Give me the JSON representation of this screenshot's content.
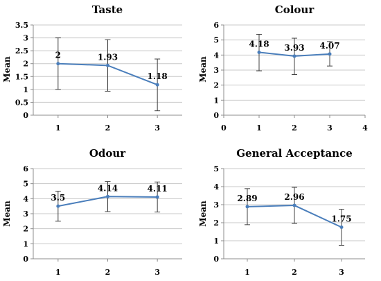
{
  "colors": {
    "series": "#4a7ebb",
    "errorbar": "#404040",
    "grid": "#c8c8c8"
  },
  "chart_data": [
    {
      "type": "line",
      "title": "Taste",
      "ylabel": "Mean",
      "xlabel": "",
      "x": [
        1,
        2,
        3
      ],
      "values": [
        2,
        1.93,
        1.18
      ],
      "data_labels": [
        "2",
        "1.93",
        "1.18"
      ],
      "error_low": [
        1,
        0.93,
        0.17
      ],
      "error_high": [
        3,
        2.93,
        2.18
      ],
      "ylim": [
        0,
        3.5
      ],
      "yticks": [
        0,
        0.5,
        1,
        1.5,
        2,
        2.5,
        3,
        3.5
      ],
      "yticklabels": [
        "0",
        "0.5",
        "1",
        "1.5",
        "2",
        "2.5",
        "3",
        "3.5"
      ],
      "xlim": [
        0.5,
        3.5
      ],
      "xticks": [
        1,
        2,
        3
      ],
      "xticklabels": [
        "1",
        "2",
        "3"
      ],
      "grid": true
    },
    {
      "type": "line",
      "title": "Colour",
      "ylabel": "Mean",
      "xlabel": "",
      "x": [
        1,
        2,
        3
      ],
      "values": [
        4.18,
        3.93,
        4.07
      ],
      "data_labels": [
        "4.18",
        "3.93",
        "4.07"
      ],
      "error_low": [
        2.95,
        2.7,
        3.27
      ],
      "error_high": [
        5.38,
        5.12,
        4.9
      ],
      "ylim": [
        0,
        6
      ],
      "yticks": [
        0,
        1,
        2,
        3,
        4,
        5,
        6
      ],
      "yticklabels": [
        "0",
        "1",
        "2",
        "3",
        "4",
        "5",
        "6"
      ],
      "xlim": [
        0,
        4
      ],
      "xticks": [
        0,
        1,
        2,
        3,
        4
      ],
      "xticklabels": [
        "0",
        "1",
        "2",
        "3",
        "4"
      ],
      "grid": true
    },
    {
      "type": "line",
      "title": "Odour",
      "ylabel": "Mean",
      "xlabel": "",
      "x": [
        1,
        2,
        3
      ],
      "values": [
        3.5,
        4.14,
        4.11
      ],
      "data_labels": [
        "3.5",
        "4.14",
        "4.11"
      ],
      "error_low": [
        2.5,
        3.14,
        3.11
      ],
      "error_high": [
        4.5,
        5.14,
        5.11
      ],
      "ylim": [
        0,
        6
      ],
      "yticks": [
        0,
        1,
        2,
        3,
        4,
        5,
        6
      ],
      "yticklabels": [
        "0",
        "1",
        "2",
        "3",
        "4",
        "5",
        "6"
      ],
      "xlim": [
        0.5,
        3.5
      ],
      "xticks": [
        1,
        2,
        3
      ],
      "xticklabels": [
        "1",
        "2",
        "3"
      ],
      "grid": true
    },
    {
      "type": "line",
      "title": "General Acceptance",
      "ylabel": "Mean",
      "xlabel": "",
      "x": [
        1,
        2,
        3
      ],
      "values": [
        2.89,
        2.96,
        1.75
      ],
      "data_labels": [
        "2.89",
        "2.96",
        "1.75"
      ],
      "error_low": [
        1.89,
        1.96,
        0.75
      ],
      "error_high": [
        3.89,
        3.96,
        2.75
      ],
      "ylim": [
        0,
        5
      ],
      "yticks": [
        0,
        1,
        2,
        3,
        4,
        5
      ],
      "yticklabels": [
        "0",
        "1",
        "2",
        "3",
        "4",
        "5"
      ],
      "xlim": [
        0.5,
        3.5
      ],
      "xticks": [
        1,
        2,
        3
      ],
      "xticklabels": [
        "1",
        "2",
        "3"
      ],
      "grid": true
    }
  ]
}
